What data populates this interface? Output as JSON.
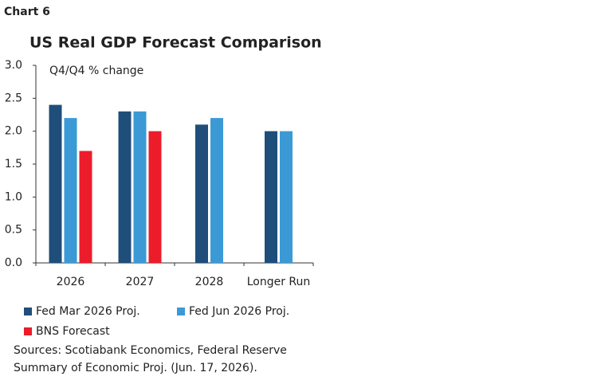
{
  "chart_data": {
    "type": "bar",
    "label": "Chart 6",
    "title": "US Real GDP Forecast Comparison",
    "ylabel": "Q4/Q4 % change",
    "categories": [
      "2026",
      "2027",
      "2028",
      "Longer Run"
    ],
    "series": [
      {
        "name": "Fed Mar 2026 Proj.",
        "color": "#1f4e7a",
        "values": [
          2.4,
          2.3,
          2.1,
          2.0
        ]
      },
      {
        "name": "Fed Jun 2026 Proj.",
        "color": "#3b9ad6",
        "values": [
          2.2,
          2.3,
          2.2,
          2.0
        ]
      },
      {
        "name": "BNS Forecast",
        "color": "#ec1c2b",
        "values": [
          1.7,
          2.0,
          null,
          null
        ]
      }
    ],
    "ylim": [
      0,
      3
    ],
    "yticks": [
      {
        "value": 0,
        "label": "0.0"
      },
      0.5,
      {
        "value": 1,
        "label": "1.0"
      },
      1.5,
      {
        "value": 2,
        "label": "2.0"
      },
      2.5,
      {
        "value": 3,
        "label": "3.0"
      }
    ],
    "grid": false,
    "note": [
      "Sources: Scotiabank Economics, Federal Reserve",
      "Summary of Economic Proj. (Jun. 17, 2026)."
    ]
  }
}
